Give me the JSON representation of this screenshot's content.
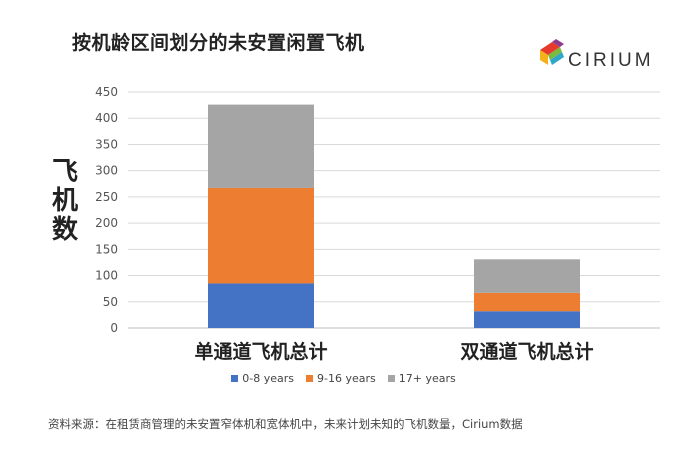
{
  "header": {
    "title": "按机龄区间划分的未安置闲置飞机"
  },
  "logo": {
    "text": "CIRIUM"
  },
  "footnote": "资料来源：在租赁商管理的未安置窄体机和宽体机中，未来计划未知的飞机数量，Cirium数据",
  "chart_data": {
    "type": "bar",
    "stacked": true,
    "title": "按机龄区间划分的未安置闲置飞机",
    "xlabel": "",
    "ylabel": "飞机数",
    "categories": [
      "单通道飞机总计",
      "双通道飞机总计"
    ],
    "series": [
      {
        "name": "0-8 years",
        "values": [
          85,
          32
        ],
        "color": "#4472C4"
      },
      {
        "name": "9-16 years",
        "values": [
          182,
          35
        ],
        "color": "#ED7D31"
      },
      {
        "name": "17+ years",
        "values": [
          159,
          64
        ],
        "color": "#A5A5A5"
      }
    ],
    "ylim": [
      0,
      450
    ],
    "yticks": [
      "0",
      "50",
      "100",
      "150",
      "200",
      "250",
      "300",
      "350",
      "400",
      "450"
    ],
    "grid": true,
    "legend_position": "bottom"
  }
}
